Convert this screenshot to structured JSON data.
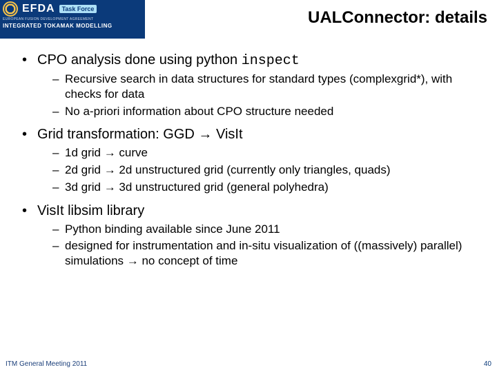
{
  "header": {
    "logo": {
      "efda": "EFDA",
      "taskforce": "Task Force",
      "line1": "EUROPEAN FUSION DEVELOPMENT AGREEMENT",
      "line2": "INTEGRATED TOKAMAK MODELLING"
    },
    "title": "UALConnector: details"
  },
  "bullets": [
    {
      "text_pre": "CPO analysis done using python ",
      "text_code": "inspect",
      "subs": [
        "Recursive search in data structures for standard types (complexgrid*), with checks for data",
        "No a-priori information about CPO structure needed"
      ]
    },
    {
      "text_pre": "Grid transformation: GGD ",
      "arrow": "→",
      "text_post": " VisIt",
      "subs": [
        "1d grid → curve",
        "2d grid → 2d unstructured grid (currently only triangles, quads)",
        "3d grid → 3d unstructured grid (general polyhedra)"
      ]
    },
    {
      "text_pre": "VisIt libsim library",
      "subs": [
        "Python binding available since June 2011",
        "designed for instrumentation and in-situ visualization of ((massively) parallel) simulations → no concept of time"
      ]
    }
  ],
  "footer": {
    "left": "ITM General Meeting 2011",
    "page": "40"
  }
}
